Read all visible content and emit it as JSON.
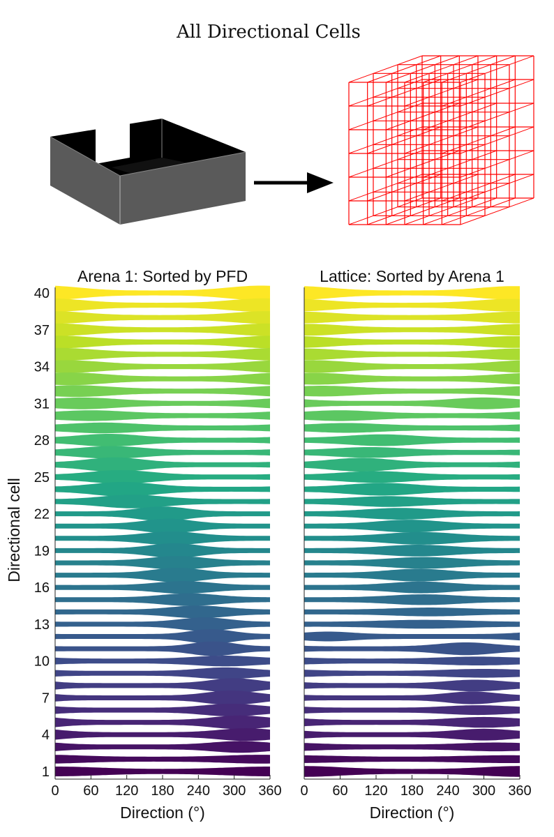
{
  "figure_title": "All Directional Cells",
  "illustration": {
    "left_icon": "arena-box-icon",
    "arrow_icon": "arrow-right-icon",
    "right_icon": "lattice-cube-icon",
    "box_color": "#5a5a5a",
    "lattice_color": "#ff0000"
  },
  "chart_data": [
    {
      "type": "ridgeline",
      "title": "Arena 1: Sorted by PFD",
      "xlabel": "Direction (°)",
      "ylabel": "Directional cell",
      "xlim": [
        0,
        360
      ],
      "xticks": [
        "0",
        "60",
        "120",
        "180",
        "240",
        "300",
        "360"
      ],
      "yticks": [
        "1",
        "4",
        "7",
        "10",
        "13",
        "16",
        "19",
        "22",
        "25",
        "28",
        "31",
        "34",
        "37",
        "40"
      ],
      "n_cells": 40,
      "colormap": "viridis",
      "cells": [
        {
          "cell": 1,
          "peak": 0,
          "width": 70,
          "amp": 0.5
        },
        {
          "cell": 2,
          "peak": 345,
          "width": 60,
          "amp": 0.4
        },
        {
          "cell": 3,
          "peak": 310,
          "width": 45,
          "amp": 0.7
        },
        {
          "cell": 4,
          "peak": 320,
          "width": 45,
          "amp": 0.8
        },
        {
          "cell": 5,
          "peak": 310,
          "width": 45,
          "amp": 0.9
        },
        {
          "cell": 6,
          "peak": 295,
          "width": 45,
          "amp": 0.8
        },
        {
          "cell": 7,
          "peak": 295,
          "width": 40,
          "amp": 1.0
        },
        {
          "cell": 8,
          "peak": 300,
          "width": 40,
          "amp": 1.0
        },
        {
          "cell": 9,
          "peak": 285,
          "width": 45,
          "amp": 0.7
        },
        {
          "cell": 10,
          "peak": 285,
          "width": 50,
          "amp": 0.6
        },
        {
          "cell": 11,
          "peak": 265,
          "width": 35,
          "amp": 1.0
        },
        {
          "cell": 12,
          "peak": 262,
          "width": 35,
          "amp": 1.0
        },
        {
          "cell": 13,
          "peak": 250,
          "width": 40,
          "amp": 0.9
        },
        {
          "cell": 14,
          "peak": 240,
          "width": 45,
          "amp": 0.8
        },
        {
          "cell": 15,
          "peak": 225,
          "width": 45,
          "amp": 0.8
        },
        {
          "cell": 16,
          "peak": 215,
          "width": 45,
          "amp": 0.8
        },
        {
          "cell": 17,
          "peak": 205,
          "width": 40,
          "amp": 1.0
        },
        {
          "cell": 18,
          "peak": 205,
          "width": 45,
          "amp": 0.9
        },
        {
          "cell": 19,
          "peak": 200,
          "width": 40,
          "amp": 1.0
        },
        {
          "cell": 20,
          "peak": 195,
          "width": 45,
          "amp": 0.9
        },
        {
          "cell": 21,
          "peak": 190,
          "width": 40,
          "amp": 1.0
        },
        {
          "cell": 22,
          "peak": 180,
          "width": 40,
          "amp": 1.0
        },
        {
          "cell": 23,
          "peak": 130,
          "width": 50,
          "amp": 0.9
        },
        {
          "cell": 24,
          "peak": 115,
          "width": 50,
          "amp": 1.0
        },
        {
          "cell": 25,
          "peak": 110,
          "width": 50,
          "amp": 0.9
        },
        {
          "cell": 26,
          "peak": 100,
          "width": 45,
          "amp": 1.0
        },
        {
          "cell": 27,
          "peak": 95,
          "width": 50,
          "amp": 0.8
        },
        {
          "cell": 28,
          "peak": 90,
          "width": 50,
          "amp": 0.8
        },
        {
          "cell": 29,
          "peak": 80,
          "width": 55,
          "amp": 0.6
        },
        {
          "cell": 30,
          "peak": 60,
          "width": 55,
          "amp": 0.6
        },
        {
          "cell": 31,
          "peak": 45,
          "width": 55,
          "amp": 0.7
        },
        {
          "cell": 32,
          "peak": 35,
          "width": 55,
          "amp": 0.7
        },
        {
          "cell": 33,
          "peak": 25,
          "width": 55,
          "amp": 0.8
        },
        {
          "cell": 34,
          "peak": 20,
          "width": 55,
          "amp": 0.8
        },
        {
          "cell": 35,
          "peak": 10,
          "width": 55,
          "amp": 0.8
        },
        {
          "cell": 36,
          "peak": 5,
          "width": 55,
          "amp": 0.8
        },
        {
          "cell": 37,
          "peak": 0,
          "width": 55,
          "amp": 0.8
        },
        {
          "cell": 38,
          "peak": 355,
          "width": 55,
          "amp": 0.8
        },
        {
          "cell": 39,
          "peak": 350,
          "width": 55,
          "amp": 0.9
        },
        {
          "cell": 40,
          "peak": 345,
          "width": 55,
          "amp": 1.0
        }
      ]
    },
    {
      "type": "ridgeline",
      "title": "Lattice: Sorted by Arena 1",
      "xlabel": "Direction (°)",
      "xlim": [
        0,
        360
      ],
      "xticks": [
        "0",
        "60",
        "120",
        "180",
        "240",
        "300",
        "360"
      ],
      "n_cells": 40,
      "colormap": "viridis",
      "cells": [
        {
          "cell": 1,
          "peak": 0,
          "width": 60,
          "amp": 0.6
        },
        {
          "cell": 2,
          "peak": 340,
          "width": 70,
          "amp": 0.3
        },
        {
          "cell": 3,
          "peak": 320,
          "width": 55,
          "amp": 0.4
        },
        {
          "cell": 4,
          "peak": 300,
          "width": 45,
          "amp": 0.7
        },
        {
          "cell": 5,
          "peak": 300,
          "width": 50,
          "amp": 0.6
        },
        {
          "cell": 6,
          "peak": 290,
          "width": 50,
          "amp": 0.5
        },
        {
          "cell": 7,
          "peak": 280,
          "width": 40,
          "amp": 0.8
        },
        {
          "cell": 8,
          "peak": 285,
          "width": 45,
          "amp": 0.7
        },
        {
          "cell": 9,
          "peak": 300,
          "width": 60,
          "amp": 0.4
        },
        {
          "cell": 10,
          "peak": 290,
          "width": 60,
          "amp": 0.4
        },
        {
          "cell": 11,
          "peak": 270,
          "width": 45,
          "amp": 0.8
        },
        {
          "cell": 12,
          "peak": 40,
          "width": 40,
          "amp": 0.5
        },
        {
          "cell": 13,
          "peak": 200,
          "width": 70,
          "amp": 0.4
        },
        {
          "cell": 14,
          "peak": 210,
          "width": 60,
          "amp": 0.4
        },
        {
          "cell": 15,
          "peak": 200,
          "width": 55,
          "amp": 0.6
        },
        {
          "cell": 16,
          "peak": 195,
          "width": 50,
          "amp": 0.7
        },
        {
          "cell": 17,
          "peak": 190,
          "width": 50,
          "amp": 0.8
        },
        {
          "cell": 18,
          "peak": 200,
          "width": 55,
          "amp": 0.7
        },
        {
          "cell": 19,
          "peak": 190,
          "width": 55,
          "amp": 0.7
        },
        {
          "cell": 20,
          "peak": 195,
          "width": 55,
          "amp": 0.8
        },
        {
          "cell": 21,
          "peak": 175,
          "width": 50,
          "amp": 0.8
        },
        {
          "cell": 22,
          "peak": 160,
          "width": 55,
          "amp": 0.7
        },
        {
          "cell": 23,
          "peak": 140,
          "width": 55,
          "amp": 0.6
        },
        {
          "cell": 24,
          "peak": 130,
          "width": 55,
          "amp": 0.8
        },
        {
          "cell": 25,
          "peak": 120,
          "width": 55,
          "amp": 0.7
        },
        {
          "cell": 26,
          "peak": 95,
          "width": 50,
          "amp": 0.9
        },
        {
          "cell": 27,
          "peak": 110,
          "width": 55,
          "amp": 0.6
        },
        {
          "cell": 28,
          "peak": 130,
          "width": 55,
          "amp": 0.7
        },
        {
          "cell": 29,
          "peak": 70,
          "width": 55,
          "amp": 0.5
        },
        {
          "cell": 30,
          "peak": 60,
          "width": 55,
          "amp": 0.6
        },
        {
          "cell": 31,
          "peak": 300,
          "width": 50,
          "amp": 0.7
        },
        {
          "cell": 32,
          "peak": 30,
          "width": 55,
          "amp": 0.6
        },
        {
          "cell": 33,
          "peak": 20,
          "width": 55,
          "amp": 0.7
        },
        {
          "cell": 34,
          "peak": 15,
          "width": 55,
          "amp": 0.8
        },
        {
          "cell": 35,
          "peak": 0,
          "width": 55,
          "amp": 0.7
        },
        {
          "cell": 36,
          "peak": 350,
          "width": 55,
          "amp": 0.7
        },
        {
          "cell": 37,
          "peak": 5,
          "width": 55,
          "amp": 0.7
        },
        {
          "cell": 38,
          "peak": 355,
          "width": 55,
          "amp": 0.7
        },
        {
          "cell": 39,
          "peak": 345,
          "width": 55,
          "amp": 0.8
        },
        {
          "cell": 40,
          "peak": 350,
          "width": 55,
          "amp": 0.9
        }
      ]
    }
  ]
}
